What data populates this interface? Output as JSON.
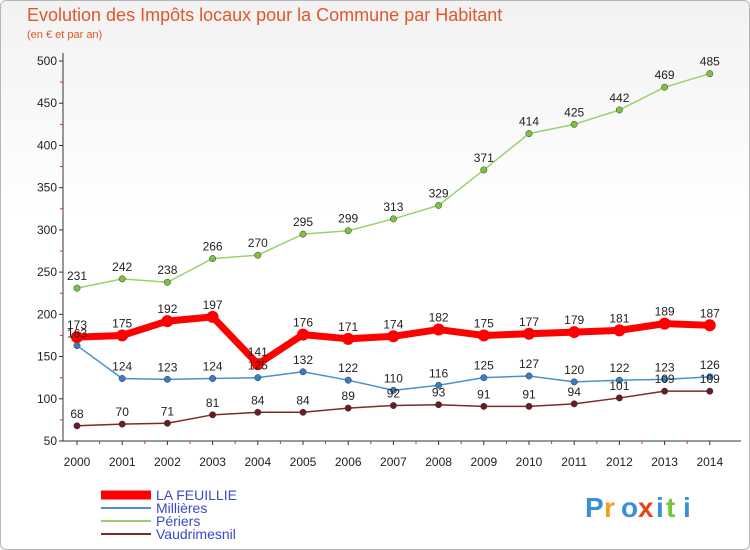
{
  "chart_data": {
    "type": "line",
    "title": "Evolution des Impôts locaux pour la Commune par Habitant",
    "subtitle": "(en € et par an)",
    "xlabel": "",
    "ylabel": "",
    "ylim": [
      50,
      500
    ],
    "yticks": [
      50,
      100,
      150,
      200,
      250,
      300,
      350,
      400,
      450,
      500
    ],
    "x": [
      "2000",
      "2001",
      "2002",
      "2003",
      "2004",
      "2005",
      "2006",
      "2007",
      "2008",
      "2009",
      "2010",
      "2011",
      "2012",
      "2013",
      "2014"
    ],
    "series": [
      {
        "name": "Périers",
        "color": "#9ad16b",
        "dot": "#7cc23b",
        "width": 1.5,
        "values": [
          231,
          242,
          238,
          266,
          270,
          295,
          299,
          313,
          329,
          371,
          414,
          425,
          442,
          469,
          485
        ]
      },
      {
        "name": "Millières",
        "color": "#4b8fd0",
        "dot": "#3a7cc0",
        "width": 1.5,
        "values": [
          163,
          124,
          123,
          124,
          125,
          132,
          122,
          110,
          116,
          125,
          127,
          120,
          122,
          123,
          126
        ]
      },
      {
        "name": "Vaudrimesnil",
        "color": "#7b2a2a",
        "dot": "#6b1d1d",
        "width": 1.5,
        "values": [
          68,
          70,
          71,
          81,
          84,
          84,
          89,
          92,
          93,
          91,
          91,
          94,
          101,
          109,
          109
        ]
      },
      {
        "name": "LA FEUILLIE",
        "color": "#ff0000",
        "dot": "#ff0000",
        "width": 7,
        "values": [
          173,
          175,
          192,
          197,
          141,
          176,
          171,
          174,
          182,
          175,
          177,
          179,
          181,
          189,
          187
        ]
      }
    ],
    "value_labels": [
      {
        "series": "LA FEUILLIE",
        "labels": [
          "173",
          "175",
          "192",
          "197",
          "141",
          "176",
          "171",
          "174",
          "182",
          "175",
          "177",
          "179",
          "181",
          "189",
          "187"
        ]
      },
      {
        "series": "Millières",
        "labels": [
          "163",
          "124",
          "123",
          "124",
          "125",
          "132",
          "122",
          "110",
          "116",
          "125",
          "127",
          "120",
          "122",
          "123",
          "126"
        ]
      },
      {
        "series": "Périers",
        "labels": [
          "231",
          "242",
          "238",
          "266",
          "270",
          "295",
          "299",
          "313",
          "329",
          "371",
          "414",
          "425",
          "442",
          "469",
          "485"
        ]
      },
      {
        "series": "Vaudrimesnil",
        "labels": [
          "68",
          "70",
          "71",
          "81",
          "84",
          "84",
          "89",
          "92",
          "93",
          "91",
          "91",
          "94",
          "101",
          "109",
          "109"
        ]
      }
    ],
    "legend": [
      "LA FEUILLIE",
      "Millières",
      "Périers",
      "Vaudrimesnil"
    ],
    "grid": false
  },
  "logo": {
    "text": "Proxiti"
  }
}
